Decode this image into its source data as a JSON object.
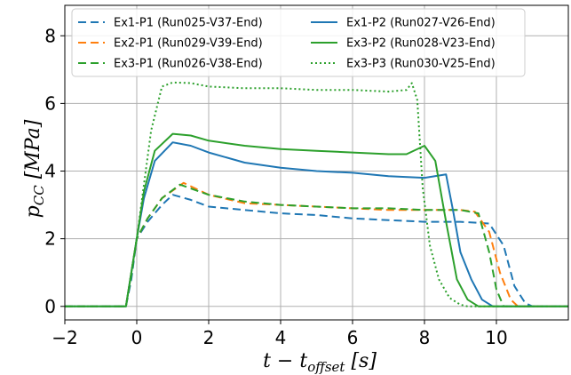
{
  "chart_data": {
    "type": "line",
    "xlabel": "t - t_offset [s]",
    "ylabel": "p_CC [MPa]",
    "xlim": [
      -2,
      12
    ],
    "ylim": [
      -0.4,
      8.9
    ],
    "xticks": [
      -2,
      0,
      2,
      4,
      6,
      8,
      10
    ],
    "yticks": [
      0,
      2,
      4,
      6,
      8
    ],
    "xtick_labels": [
      "−2",
      "0",
      "2",
      "4",
      "6",
      "8",
      "10"
    ],
    "ytick_labels": [
      "0",
      "2",
      "4",
      "6",
      "8"
    ],
    "grid": true,
    "legend_position": "top",
    "legend_columns": 2,
    "series": [
      {
        "name": "Ex1-P1 (Run025-V37-End)",
        "color": "#1f77b4",
        "style": "dashed",
        "points": [
          [
            -2,
            0
          ],
          [
            -0.3,
            0
          ],
          [
            -0.15,
            0.8
          ],
          [
            0,
            2.0
          ],
          [
            0.3,
            2.5
          ],
          [
            0.7,
            3.0
          ],
          [
            1.0,
            3.3
          ],
          [
            1.5,
            3.15
          ],
          [
            2,
            2.95
          ],
          [
            3,
            2.85
          ],
          [
            4,
            2.75
          ],
          [
            5,
            2.7
          ],
          [
            6,
            2.6
          ],
          [
            7,
            2.55
          ],
          [
            8,
            2.5
          ],
          [
            9,
            2.5
          ],
          [
            9.8,
            2.45
          ],
          [
            10.2,
            1.8
          ],
          [
            10.5,
            0.6
          ],
          [
            10.8,
            0.1
          ],
          [
            11,
            0
          ]
        ]
      },
      {
        "name": "Ex2-P1 (Run029-V39-End)",
        "color": "#ff7f0e",
        "style": "dashed",
        "points": [
          [
            -2,
            0
          ],
          [
            -0.3,
            0
          ],
          [
            -0.15,
            1.0
          ],
          [
            0,
            2.0
          ],
          [
            0.3,
            2.6
          ],
          [
            0.7,
            3.2
          ],
          [
            1.3,
            3.65
          ],
          [
            2,
            3.3
          ],
          [
            3,
            3.05
          ],
          [
            4,
            3.0
          ],
          [
            5,
            2.95
          ],
          [
            6,
            2.9
          ],
          [
            7,
            2.85
          ],
          [
            8,
            2.85
          ],
          [
            9,
            2.85
          ],
          [
            9.4,
            2.8
          ],
          [
            9.8,
            2.2
          ],
          [
            10.1,
            1.0
          ],
          [
            10.4,
            0.2
          ],
          [
            10.6,
            0
          ],
          [
            12,
            0
          ]
        ]
      },
      {
        "name": "Ex3-P1 (Run026-V38-End)",
        "color": "#2ca02c",
        "style": "dashed",
        "points": [
          [
            -2,
            0
          ],
          [
            -0.3,
            0
          ],
          [
            -0.15,
            0.9
          ],
          [
            0,
            2.0
          ],
          [
            0.3,
            2.6
          ],
          [
            0.7,
            3.2
          ],
          [
            1.2,
            3.6
          ],
          [
            2,
            3.3
          ],
          [
            3,
            3.1
          ],
          [
            4,
            3.0
          ],
          [
            5,
            2.95
          ],
          [
            6,
            2.9
          ],
          [
            7,
            2.9
          ],
          [
            8,
            2.85
          ],
          [
            9,
            2.85
          ],
          [
            9.5,
            2.75
          ],
          [
            9.8,
            1.6
          ],
          [
            10.0,
            0.5
          ],
          [
            10.2,
            0
          ],
          [
            12,
            0
          ]
        ]
      },
      {
        "name": "Ex1-P2 (Run027-V26-End)",
        "color": "#1f77b4",
        "style": "solid",
        "points": [
          [
            -2,
            0
          ],
          [
            -0.3,
            0
          ],
          [
            -0.15,
            1.0
          ],
          [
            0,
            2.0
          ],
          [
            0.2,
            3.2
          ],
          [
            0.5,
            4.3
          ],
          [
            1,
            4.85
          ],
          [
            1.5,
            4.75
          ],
          [
            2,
            4.55
          ],
          [
            3,
            4.25
          ],
          [
            4,
            4.1
          ],
          [
            5,
            4.0
          ],
          [
            6,
            3.95
          ],
          [
            7,
            3.85
          ],
          [
            8,
            3.8
          ],
          [
            8.6,
            3.9
          ],
          [
            8.8,
            2.8
          ],
          [
            9,
            1.6
          ],
          [
            9.3,
            0.8
          ],
          [
            9.6,
            0.2
          ],
          [
            9.9,
            0
          ],
          [
            12,
            0
          ]
        ]
      },
      {
        "name": "Ex3-P2 (Run028-V23-End)",
        "color": "#2ca02c",
        "style": "solid",
        "points": [
          [
            -2,
            0
          ],
          [
            -0.3,
            0
          ],
          [
            -0.15,
            1.0
          ],
          [
            0,
            2.0
          ],
          [
            0.2,
            3.4
          ],
          [
            0.5,
            4.6
          ],
          [
            1,
            5.1
          ],
          [
            1.5,
            5.05
          ],
          [
            2,
            4.9
          ],
          [
            3,
            4.75
          ],
          [
            4,
            4.65
          ],
          [
            5,
            4.6
          ],
          [
            6,
            4.55
          ],
          [
            7,
            4.5
          ],
          [
            7.5,
            4.5
          ],
          [
            8,
            4.75
          ],
          [
            8.3,
            4.3
          ],
          [
            8.6,
            2.5
          ],
          [
            8.9,
            0.8
          ],
          [
            9.2,
            0.2
          ],
          [
            9.5,
            0
          ],
          [
            12,
            0
          ]
        ]
      },
      {
        "name": "Ex3-P3 (Run030-V25-End)",
        "color": "#2ca02c",
        "style": "dotted",
        "points": [
          [
            -2,
            0
          ],
          [
            -0.3,
            0
          ],
          [
            -0.15,
            1.0
          ],
          [
            0,
            2.0
          ],
          [
            0.2,
            3.6
          ],
          [
            0.4,
            5.2
          ],
          [
            0.7,
            6.5
          ],
          [
            1,
            6.62
          ],
          [
            1.5,
            6.6
          ],
          [
            2,
            6.5
          ],
          [
            3,
            6.45
          ],
          [
            4,
            6.45
          ],
          [
            5,
            6.4
          ],
          [
            6,
            6.4
          ],
          [
            7,
            6.35
          ],
          [
            7.5,
            6.4
          ],
          [
            7.65,
            6.6
          ],
          [
            7.8,
            6.1
          ],
          [
            7.95,
            3.5
          ],
          [
            8.15,
            1.8
          ],
          [
            8.4,
            0.8
          ],
          [
            8.7,
            0.25
          ],
          [
            9.0,
            0.05
          ],
          [
            9.2,
            0
          ],
          [
            12,
            0
          ]
        ]
      }
    ]
  }
}
